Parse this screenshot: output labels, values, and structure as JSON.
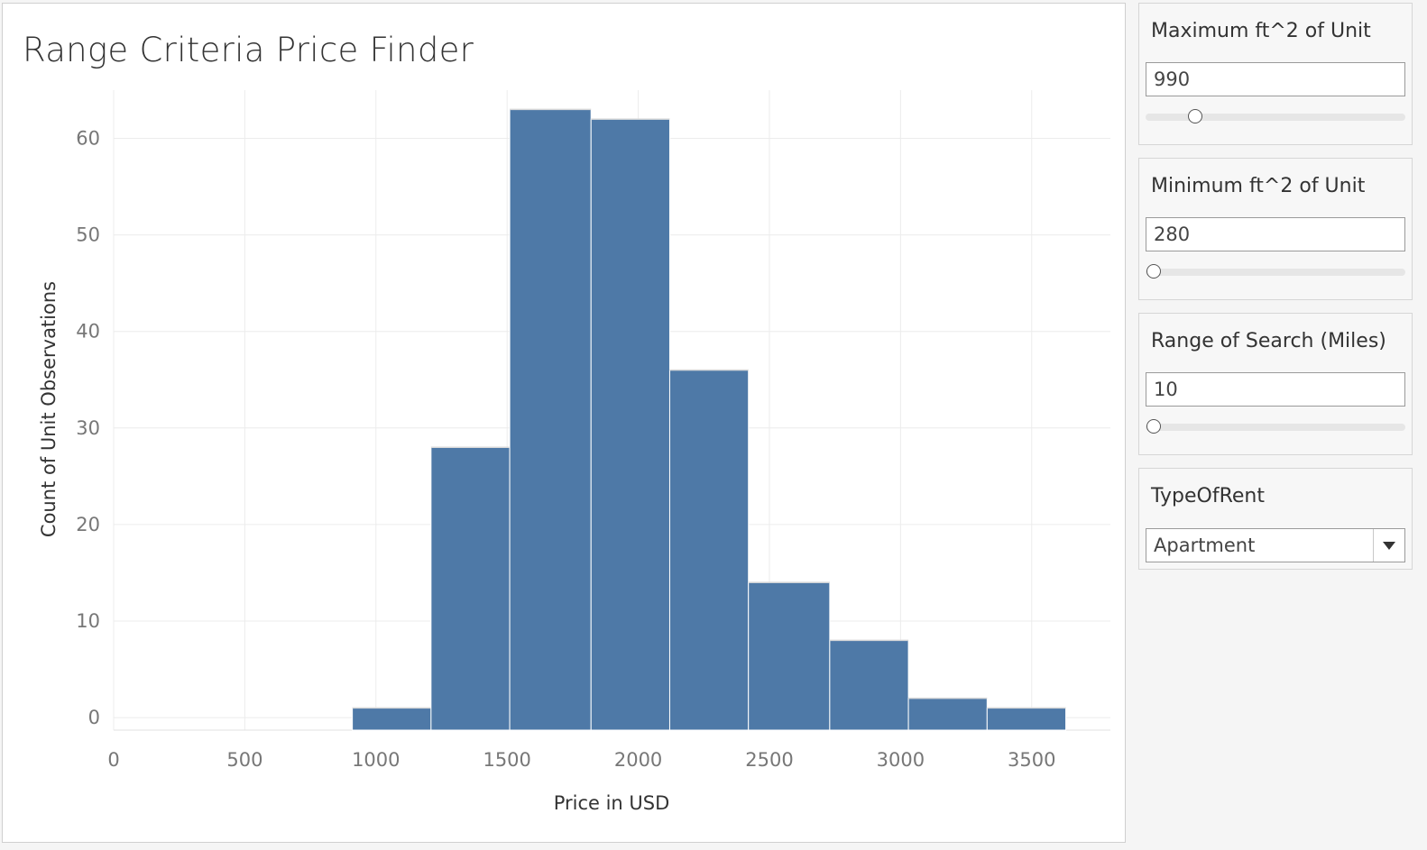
{
  "chart_data": {
    "type": "bar",
    "title": "Range Criteria Price Finder",
    "xlabel": "Price in USD",
    "ylabel": "Count of Unit Observations",
    "xlim": [
      0,
      3800
    ],
    "ylim": [
      -1.3,
      65
    ],
    "xticks": [
      0,
      500,
      1000,
      1500,
      2000,
      2500,
      3000,
      3500
    ],
    "yticks": [
      0,
      10,
      20,
      30,
      40,
      50,
      60
    ],
    "bins": [
      {
        "start": 910,
        "end": 1210,
        "count": 1
      },
      {
        "start": 1210,
        "end": 1510,
        "count": 28
      },
      {
        "start": 1510,
        "end": 1820,
        "count": 63
      },
      {
        "start": 1820,
        "end": 2120,
        "count": 62
      },
      {
        "start": 2120,
        "end": 2420,
        "count": 36
      },
      {
        "start": 2420,
        "end": 2730,
        "count": 14
      },
      {
        "start": 2730,
        "end": 3030,
        "count": 8
      },
      {
        "start": 3030,
        "end": 3330,
        "count": 2
      },
      {
        "start": 3330,
        "end": 3630,
        "count": 1
      }
    ],
    "bar_color": "#4e79a7",
    "grid": true,
    "legend": "none"
  },
  "filters": {
    "max_sqft": {
      "title": "Maximum ft^2 of Unit",
      "value": "990",
      "fraction": 0.19
    },
    "min_sqft": {
      "title": "Minimum ft^2 of Unit",
      "value": "280",
      "fraction": 0.03
    },
    "range": {
      "title": "Range of Search (Miles)",
      "value": "10",
      "fraction": 0.03
    },
    "type_of_rent": {
      "title": "TypeOfRent",
      "value": "Apartment"
    }
  }
}
